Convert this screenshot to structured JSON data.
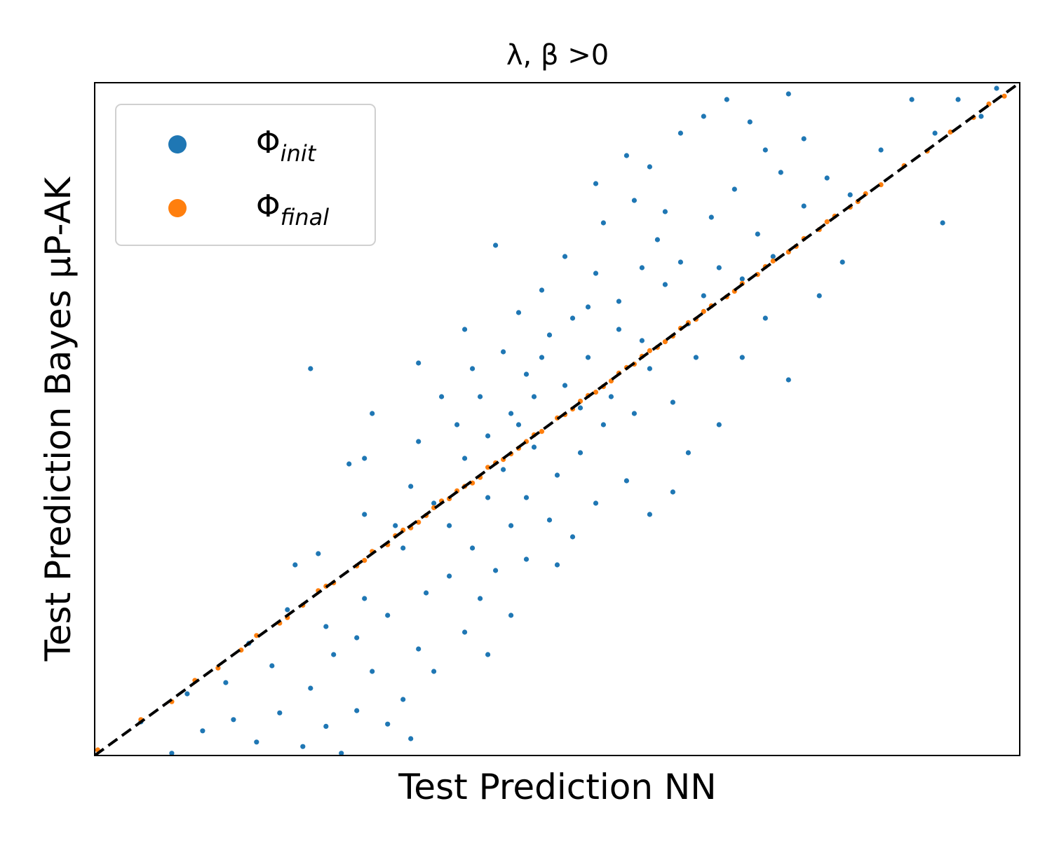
{
  "chart_data": {
    "type": "scatter",
    "title": "λ, β >0",
    "xlabel": "Test Prediction NN",
    "ylabel": "Test Prediction Bayes μP-AK",
    "xlim": [
      -3,
      3
    ],
    "ylim": [
      -3,
      3
    ],
    "ticks_visible": false,
    "grid": false,
    "legend_position": "top-left",
    "reference_line": {
      "label": "y = x",
      "style": "dashed",
      "color": "#000000"
    },
    "series": [
      {
        "name": "Φ",
        "subscript": "init",
        "color": "#1f77b4",
        "points": [
          [
            -2.7,
            -2.7
          ],
          [
            -2.5,
            -2.98
          ],
          [
            -2.3,
            -2.78
          ],
          [
            -2.1,
            -2.68
          ],
          [
            -1.95,
            -2.88
          ],
          [
            -1.8,
            -2.62
          ],
          [
            -1.65,
            -2.92
          ],
          [
            -1.5,
            -2.74
          ],
          [
            -1.4,
            -2.98
          ],
          [
            -1.3,
            -2.6
          ],
          [
            -1.1,
            -2.72
          ],
          [
            -2.4,
            -2.45
          ],
          [
            -2.15,
            -2.35
          ],
          [
            -1.85,
            -2.2
          ],
          [
            -1.6,
            -2.4
          ],
          [
            -1.45,
            -2.1
          ],
          [
            -1.2,
            -2.25
          ],
          [
            -1.0,
            -2.5
          ],
          [
            -0.9,
            -2.05
          ],
          [
            -0.95,
            -2.85
          ],
          [
            -2.0,
            -2.0
          ],
          [
            -1.75,
            -1.7
          ],
          [
            -1.5,
            -1.85
          ],
          [
            -1.3,
            -1.95
          ],
          [
            -1.25,
            -1.6
          ],
          [
            -1.1,
            -1.75
          ],
          [
            -0.85,
            -1.55
          ],
          [
            -0.6,
            -1.9
          ],
          [
            -0.45,
            -2.1
          ],
          [
            -0.3,
            -1.75
          ],
          [
            -1.7,
            -1.3
          ],
          [
            -1.55,
            -1.2
          ],
          [
            -1.35,
            -0.4
          ],
          [
            -1.25,
            -0.85
          ],
          [
            -1.05,
            -0.95
          ],
          [
            -0.95,
            -0.6
          ],
          [
            -0.8,
            -0.75
          ],
          [
            -0.55,
            -1.15
          ],
          [
            -0.4,
            -1.35
          ],
          [
            -0.2,
            -1.25
          ],
          [
            -0.7,
            -0.95
          ],
          [
            -0.6,
            -0.35
          ],
          [
            -0.45,
            -0.15
          ],
          [
            -0.35,
            -0.45
          ],
          [
            -0.2,
            -0.7
          ],
          [
            -0.05,
            -0.9
          ],
          [
            0.1,
            -1.05
          ],
          [
            0.25,
            -0.75
          ],
          [
            -1.2,
            0.05
          ],
          [
            -0.9,
            -0.2
          ],
          [
            -0.65,
            -0.05
          ],
          [
            -0.5,
            0.2
          ],
          [
            -0.3,
            0.05
          ],
          [
            -0.15,
            -0.25
          ],
          [
            0.0,
            -0.5
          ],
          [
            0.15,
            -0.3
          ],
          [
            0.3,
            -0.05
          ],
          [
            0.45,
            -0.55
          ],
          [
            0.6,
            -0.85
          ],
          [
            0.75,
            -0.65
          ],
          [
            -0.35,
            0.6
          ],
          [
            -0.2,
            0.4
          ],
          [
            -0.05,
            0.75
          ],
          [
            0.05,
            0.3
          ],
          [
            0.2,
            0.55
          ],
          [
            0.35,
            0.2
          ],
          [
            0.5,
            0.05
          ],
          [
            0.6,
            0.45
          ],
          [
            0.75,
            0.15
          ],
          [
            0.85,
            -0.3
          ],
          [
            -0.75,
            0.2
          ],
          [
            -0.55,
            0.45
          ],
          [
            -0.25,
            0.95
          ],
          [
            -0.1,
            1.15
          ],
          [
            0.1,
            0.9
          ],
          [
            0.25,
            1.3
          ],
          [
            0.4,
            1.05
          ],
          [
            0.55,
            0.7
          ],
          [
            0.7,
            1.2
          ],
          [
            0.85,
            0.85
          ],
          [
            -1.6,
            0.45
          ],
          [
            -1.25,
            -0.35
          ],
          [
            -0.9,
            0.5
          ],
          [
            -0.4,
            1.55
          ],
          [
            0.05,
            1.45
          ],
          [
            0.3,
            1.75
          ],
          [
            0.5,
            1.95
          ],
          [
            0.65,
            1.6
          ],
          [
            0.8,
            1.4
          ],
          [
            0.95,
            1.1
          ],
          [
            0.25,
            2.1
          ],
          [
            0.45,
            2.35
          ],
          [
            0.6,
            2.25
          ],
          [
            0.8,
            2.55
          ],
          [
            0.95,
            2.7
          ],
          [
            1.1,
            2.85
          ],
          [
            1.25,
            2.65
          ],
          [
            1.35,
            2.4
          ],
          [
            1.5,
            2.9
          ],
          [
            1.6,
            2.5
          ],
          [
            1.0,
            1.8
          ],
          [
            1.15,
            2.05
          ],
          [
            1.3,
            1.65
          ],
          [
            1.45,
            2.2
          ],
          [
            1.6,
            1.9
          ],
          [
            1.75,
            2.15
          ],
          [
            1.9,
            2.0
          ],
          [
            1.05,
            1.35
          ],
          [
            1.2,
            1.25
          ],
          [
            1.35,
            0.9
          ],
          [
            1.85,
            1.4
          ],
          [
            2.1,
            2.4
          ],
          [
            2.3,
            2.85
          ],
          [
            2.45,
            2.55
          ],
          [
            2.6,
            2.85
          ],
          [
            2.75,
            2.7
          ],
          [
            2.5,
            1.75
          ],
          [
            2.85,
            2.95
          ],
          [
            1.5,
            0.35
          ],
          [
            1.2,
            0.55
          ],
          [
            0.9,
            0.55
          ],
          [
            1.05,
            -0.05
          ],
          [
            -0.45,
            -0.7
          ],
          [
            -0.15,
            0.2
          ],
          [
            -0.7,
            -1.4
          ],
          [
            -1.0,
            -1.15
          ],
          [
            -0.5,
            -1.6
          ],
          [
            -0.25,
            -0.05
          ],
          [
            0.15,
            0.1
          ],
          [
            0.4,
            0.8
          ],
          [
            1.7,
            1.1
          ],
          [
            1.4,
            1.45
          ],
          [
            0.7,
            1.85
          ],
          [
            0.55,
            1.35
          ],
          [
            0.2,
            1.0
          ],
          [
            -0.1,
            0.55
          ],
          [
            -0.6,
            0.8
          ],
          [
            -0.3,
            -0.95
          ],
          [
            0.0,
            -1.3
          ],
          [
            -0.8,
            -2.25
          ]
        ]
      },
      {
        "name": "Φ",
        "subscript": "final",
        "color": "#ff7f0e",
        "points": [
          [
            -2.98,
            -2.95
          ],
          [
            -2.7,
            -2.68
          ],
          [
            -2.5,
            -2.52
          ],
          [
            -2.35,
            -2.33
          ],
          [
            -2.2,
            -2.22
          ],
          [
            -2.05,
            -2.06
          ],
          [
            -1.95,
            -1.93
          ],
          [
            -1.8,
            -1.82
          ],
          [
            -1.65,
            -1.66
          ],
          [
            -1.55,
            -1.53
          ],
          [
            -1.45,
            -1.46
          ],
          [
            -1.3,
            -1.31
          ],
          [
            -1.2,
            -1.18
          ],
          [
            -1.1,
            -1.12
          ],
          [
            -1.0,
            -0.99
          ],
          [
            -0.9,
            -0.92
          ],
          [
            -0.8,
            -0.79
          ],
          [
            -0.7,
            -0.71
          ],
          [
            -0.6,
            -0.6
          ],
          [
            -0.5,
            -0.52
          ],
          [
            -0.4,
            -0.39
          ],
          [
            -0.3,
            -0.31
          ],
          [
            -0.2,
            -0.2
          ],
          [
            -0.1,
            -0.11
          ],
          [
            0.0,
            0.01
          ],
          [
            0.1,
            0.09
          ],
          [
            0.2,
            0.21
          ],
          [
            0.3,
            0.29
          ],
          [
            0.4,
            0.41
          ],
          [
            0.5,
            0.49
          ],
          [
            0.6,
            0.61
          ],
          [
            0.7,
            0.69
          ],
          [
            0.8,
            0.81
          ],
          [
            0.9,
            0.89
          ],
          [
            1.0,
            1.01
          ],
          [
            1.1,
            1.09
          ],
          [
            1.2,
            1.21
          ],
          [
            1.3,
            1.29
          ],
          [
            1.4,
            1.41
          ],
          [
            1.5,
            1.49
          ],
          [
            1.6,
            1.61
          ],
          [
            1.7,
            1.69
          ],
          [
            1.8,
            1.81
          ],
          [
            1.9,
            1.89
          ],
          [
            2.0,
            2.01
          ],
          [
            2.1,
            2.09
          ],
          [
            2.25,
            2.26
          ],
          [
            2.4,
            2.39
          ],
          [
            2.55,
            2.56
          ],
          [
            2.7,
            2.69
          ],
          [
            2.8,
            2.81
          ],
          [
            2.9,
            2.88
          ],
          [
            -0.95,
            -0.97
          ],
          [
            -0.75,
            -0.73
          ],
          [
            -0.55,
            -0.57
          ],
          [
            -0.45,
            -0.43
          ],
          [
            -0.25,
            -0.26
          ],
          [
            -0.15,
            -0.14
          ],
          [
            0.05,
            0.04
          ],
          [
            0.15,
            0.16
          ],
          [
            0.35,
            0.34
          ],
          [
            0.55,
            0.56
          ],
          [
            0.75,
            0.74
          ],
          [
            0.95,
            0.96
          ],
          [
            1.15,
            1.14
          ],
          [
            1.35,
            1.36
          ],
          [
            1.55,
            1.54
          ],
          [
            1.75,
            1.76
          ],
          [
            1.95,
            1.94
          ],
          [
            -1.75,
            -1.77
          ],
          [
            -1.5,
            -1.49
          ],
          [
            -1.25,
            -1.26
          ],
          [
            -1.05,
            -1.04
          ],
          [
            -0.85,
            -0.86
          ],
          [
            -0.65,
            -0.64
          ],
          [
            -0.35,
            -0.36
          ],
          [
            0.25,
            0.24
          ],
          [
            0.45,
            0.46
          ],
          [
            0.65,
            0.64
          ],
          [
            0.85,
            0.86
          ]
        ]
      }
    ]
  }
}
